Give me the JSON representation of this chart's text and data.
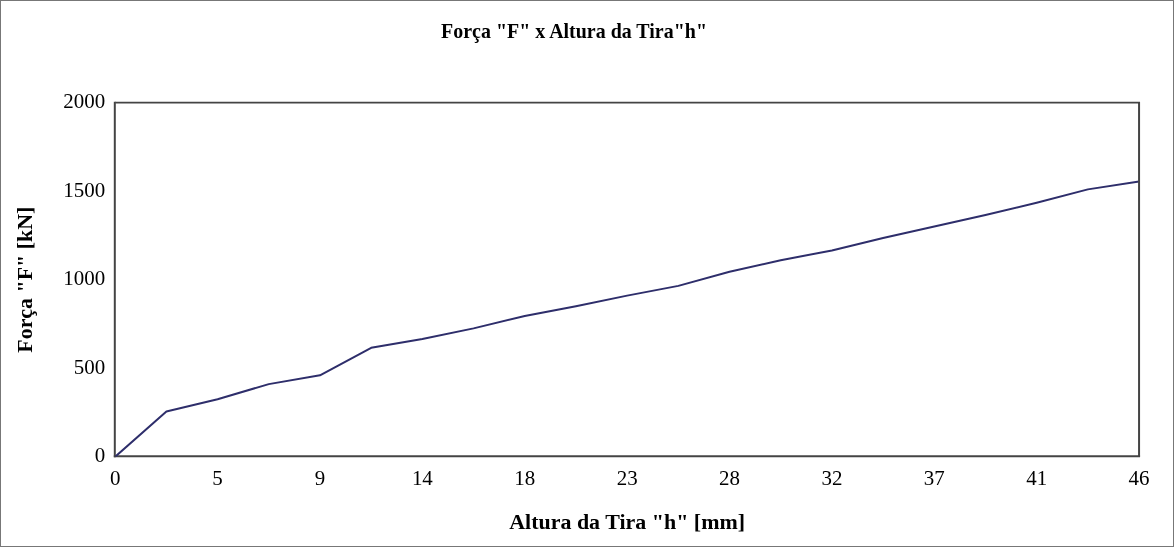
{
  "chart_data": {
    "type": "line",
    "title": "Força \"F\" x Altura da Tira\"h\"",
    "xlabel": "Altura da Tira \"h\" [mm]",
    "ylabel": "Força \"F\" [kN]",
    "x": [
      0,
      2.3,
      4.6,
      6.9,
      9.2,
      11.5,
      13.8,
      16.1,
      18.4,
      20.7,
      23,
      25.3,
      27.6,
      29.9,
      32.2,
      34.5,
      36.8,
      39.1,
      41.4,
      43.7,
      46
    ],
    "series": [
      {
        "color": "#2e2e6b",
        "values": [
          0,
          255,
          325,
          410,
          460,
          615,
          665,
          725,
          795,
          850,
          910,
          965,
          1045,
          1110,
          1165,
          1235,
          1300,
          1365,
          1435,
          1510,
          1555
        ]
      }
    ],
    "xlim": [
      0,
      46
    ],
    "xticks": [
      0,
      {
        "value": 4.6,
        "label": "5"
      },
      {
        "value": 9.2,
        "label": "9"
      },
      {
        "value": 13.8,
        "label": "14"
      },
      {
        "value": 18.4,
        "label": "18"
      },
      23,
      {
        "value": 27.6,
        "label": "28"
      },
      {
        "value": 32.2,
        "label": "32"
      },
      {
        "value": 36.8,
        "label": "37"
      },
      {
        "value": 41.4,
        "label": "41"
      },
      46
    ],
    "ylim": [
      0,
      2000
    ],
    "yticks": [
      0,
      500,
      1000,
      1500,
      2000
    ],
    "grid": false,
    "legend": false,
    "marker": "none",
    "line_style": "solid"
  }
}
